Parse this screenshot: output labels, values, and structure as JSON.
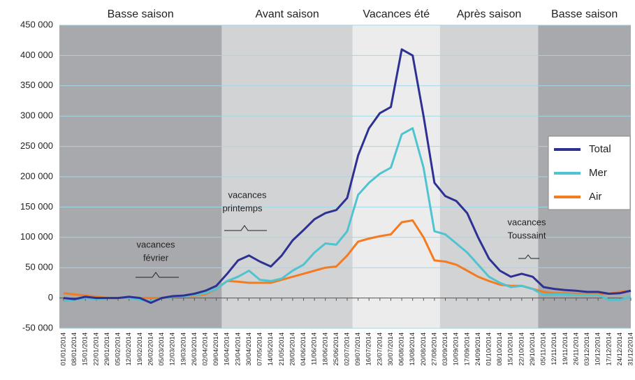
{
  "chart_data": {
    "type": "line",
    "categories": [
      "01/01/2014",
      "08/01/2014",
      "15/01/2014",
      "22/01/2014",
      "29/01/2014",
      "05/02/2014",
      "12/02/2014",
      "19/02/2014",
      "26/02/2014",
      "05/03/2014",
      "12/03/2014",
      "19/03/2014",
      "26/03/2014",
      "02/04/2014",
      "09/04/2014",
      "16/04/2014",
      "23/04/2014",
      "30/04/2014",
      "07/05/2014",
      "14/05/2014",
      "21/05/2014",
      "28/05/2014",
      "04/06/2014",
      "11/06/2014",
      "18/06/2014",
      "25/06/2014",
      "02/07/2014",
      "09/07/2014",
      "16/07/2014",
      "23/07/2014",
      "30/07/2014",
      "06/08/2014",
      "13/08/2014",
      "20/08/2014",
      "27/08/2014",
      "03/09/2014",
      "10/09/2014",
      "17/09/2014",
      "24/09/2014",
      "01/10/2014",
      "08/10/2014",
      "15/10/2014",
      "22/10/2014",
      "29/10/2014",
      "05/11/2014",
      "12/11/2014",
      "19/11/2014",
      "26/11/2014",
      "03/12/2014",
      "10/12/2014",
      "17/12/2014",
      "24/12/2014",
      "31/12/2014"
    ],
    "series": [
      {
        "name": "Total",
        "color": "#2e3192",
        "values": [
          0,
          -2000,
          2000,
          0,
          0,
          0,
          2000,
          0,
          -8000,
          0,
          3000,
          4000,
          7000,
          12000,
          20000,
          40000,
          62000,
          70000,
          60000,
          52000,
          70000,
          95000,
          112000,
          130000,
          140000,
          145000,
          165000,
          235000,
          280000,
          305000,
          315000,
          410000,
          400000,
          300000,
          190000,
          168000,
          160000,
          140000,
          100000,
          65000,
          45000,
          35000,
          40000,
          35000,
          18000,
          15000,
          13000,
          12000,
          10000,
          10000,
          7000,
          8000,
          12000
        ]
      },
      {
        "name": "Mer",
        "color": "#4fc3cf",
        "values": [
          -5000,
          -3000,
          0,
          -2000,
          0,
          0,
          0,
          -3000,
          -6000,
          0,
          2000,
          3000,
          5000,
          8000,
          15000,
          28000,
          35000,
          45000,
          30000,
          28000,
          32000,
          45000,
          55000,
          75000,
          90000,
          88000,
          110000,
          170000,
          190000,
          205000,
          215000,
          270000,
          280000,
          215000,
          110000,
          105000,
          90000,
          75000,
          55000,
          35000,
          25000,
          18000,
          20000,
          15000,
          5000,
          6000,
          6000,
          5000,
          5000,
          5000,
          -3000,
          -3000,
          2000
        ]
      },
      {
        "name": "Air",
        "color": "#f47b20",
        "values": [
          8000,
          6000,
          4000,
          2000,
          0,
          0,
          0,
          0,
          0,
          0,
          2000,
          3000,
          4000,
          6000,
          15000,
          28000,
          27000,
          25000,
          25000,
          25000,
          30000,
          35000,
          40000,
          45000,
          50000,
          52000,
          70000,
          93000,
          98000,
          102000,
          105000,
          125000,
          128000,
          100000,
          62000,
          60000,
          55000,
          45000,
          35000,
          28000,
          22000,
          20000,
          20000,
          15000,
          10000,
          8000,
          8000,
          7000,
          7000,
          6000,
          7000,
          10000,
          12000
        ]
      }
    ],
    "ylim": [
      -50000,
      450000
    ],
    "yticks": [
      {
        "value": -50000,
        "label": "-50 000"
      },
      0,
      {
        "value": 50000,
        "label": "50 000"
      },
      {
        "value": 100000,
        "label": "100 000"
      },
      {
        "value": 150000,
        "label": "150 000"
      },
      {
        "value": 200000,
        "label": "200 000"
      },
      {
        "value": 250000,
        "label": "250 000"
      },
      {
        "value": 300000,
        "label": "300 000"
      },
      {
        "value": 350000,
        "label": "350 000"
      },
      {
        "value": 400000,
        "label": "400 000"
      },
      {
        "value": 450000,
        "label": "450 000"
      }
    ],
    "grid": true,
    "legend": "right",
    "seasons": [
      {
        "label": "Basse saison",
        "from": "01/01/2014",
        "color": "#a7a9ac"
      },
      {
        "label": "Avant saison",
        "from": "16/04/2014",
        "color": "#d1d3d4"
      },
      {
        "label": "Vacances été",
        "from": "09/07/2014",
        "color": "#ececec"
      },
      {
        "label": "Après saison",
        "from": "03/09/2014",
        "color": "#d1d3d4"
      },
      {
        "label": "Basse saison",
        "from": "05/11/2014",
        "color": "#a7a9ac"
      }
    ],
    "annotations": [
      {
        "lines": [
          "vacances",
          "février"
        ]
      },
      {
        "lines": [
          "vacances",
          "printemps"
        ]
      },
      {
        "lines": [
          "vacances",
          "Toussaint"
        ]
      }
    ]
  }
}
